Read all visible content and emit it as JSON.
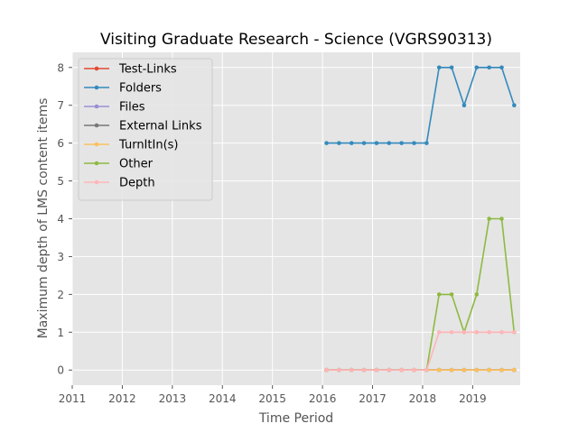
{
  "chart_data": {
    "type": "line",
    "title": "Visiting Graduate Research - Science (VGRS90313)",
    "xlabel": "Time Period",
    "ylabel": "Maximum depth of LMS content items",
    "xlim": [
      2011,
      2019.95
    ],
    "ylim": [
      -0.4,
      8.4
    ],
    "xticks": [
      2011,
      2012,
      2013,
      2014,
      2015,
      2016,
      2017,
      2018,
      2019
    ],
    "yticks": [
      0,
      1,
      2,
      3,
      4,
      5,
      6,
      7,
      8
    ],
    "grid": true,
    "legend": "top-left",
    "x": [
      2016.08,
      2016.33,
      2016.58,
      2016.83,
      2017.08,
      2017.33,
      2017.58,
      2017.83,
      2018.08,
      2018.33,
      2018.58,
      2018.83,
      2019.08,
      2019.33,
      2019.58,
      2019.83
    ],
    "series": [
      {
        "name": "Test-Links",
        "color": "#E24A33",
        "values": [
          0,
          0,
          0,
          0,
          0,
          0,
          0,
          0,
          0,
          0,
          0,
          0,
          0,
          0,
          0,
          0
        ]
      },
      {
        "name": "Folders",
        "color": "#348ABD",
        "values": [
          6,
          6,
          6,
          6,
          6,
          6,
          6,
          6,
          6,
          8,
          8,
          7,
          8,
          8,
          8,
          7
        ]
      },
      {
        "name": "Files",
        "color": "#988ED5",
        "values": [
          0,
          0,
          0,
          0,
          0,
          0,
          0,
          0,
          0,
          0,
          0,
          0,
          0,
          0,
          0,
          0
        ]
      },
      {
        "name": "External Links",
        "color": "#777777",
        "values": [
          0,
          0,
          0,
          0,
          0,
          0,
          0,
          0,
          0,
          0,
          0,
          0,
          0,
          0,
          0,
          0
        ]
      },
      {
        "name": "TurnItIn(s)",
        "color": "#FBC15E",
        "values": [
          0,
          0,
          0,
          0,
          0,
          0,
          0,
          0,
          0,
          0,
          0,
          0,
          0,
          0,
          0,
          0
        ]
      },
      {
        "name": "Other",
        "color": "#8EBA42",
        "values": [
          0,
          0,
          0,
          0,
          0,
          0,
          0,
          0,
          0,
          2,
          2,
          1,
          2,
          4,
          4,
          1
        ]
      },
      {
        "name": "Depth",
        "color": "#FFB5B8",
        "values": [
          0,
          0,
          0,
          0,
          0,
          0,
          0,
          0,
          0,
          1,
          1,
          1,
          1,
          1,
          1,
          1
        ]
      }
    ]
  }
}
